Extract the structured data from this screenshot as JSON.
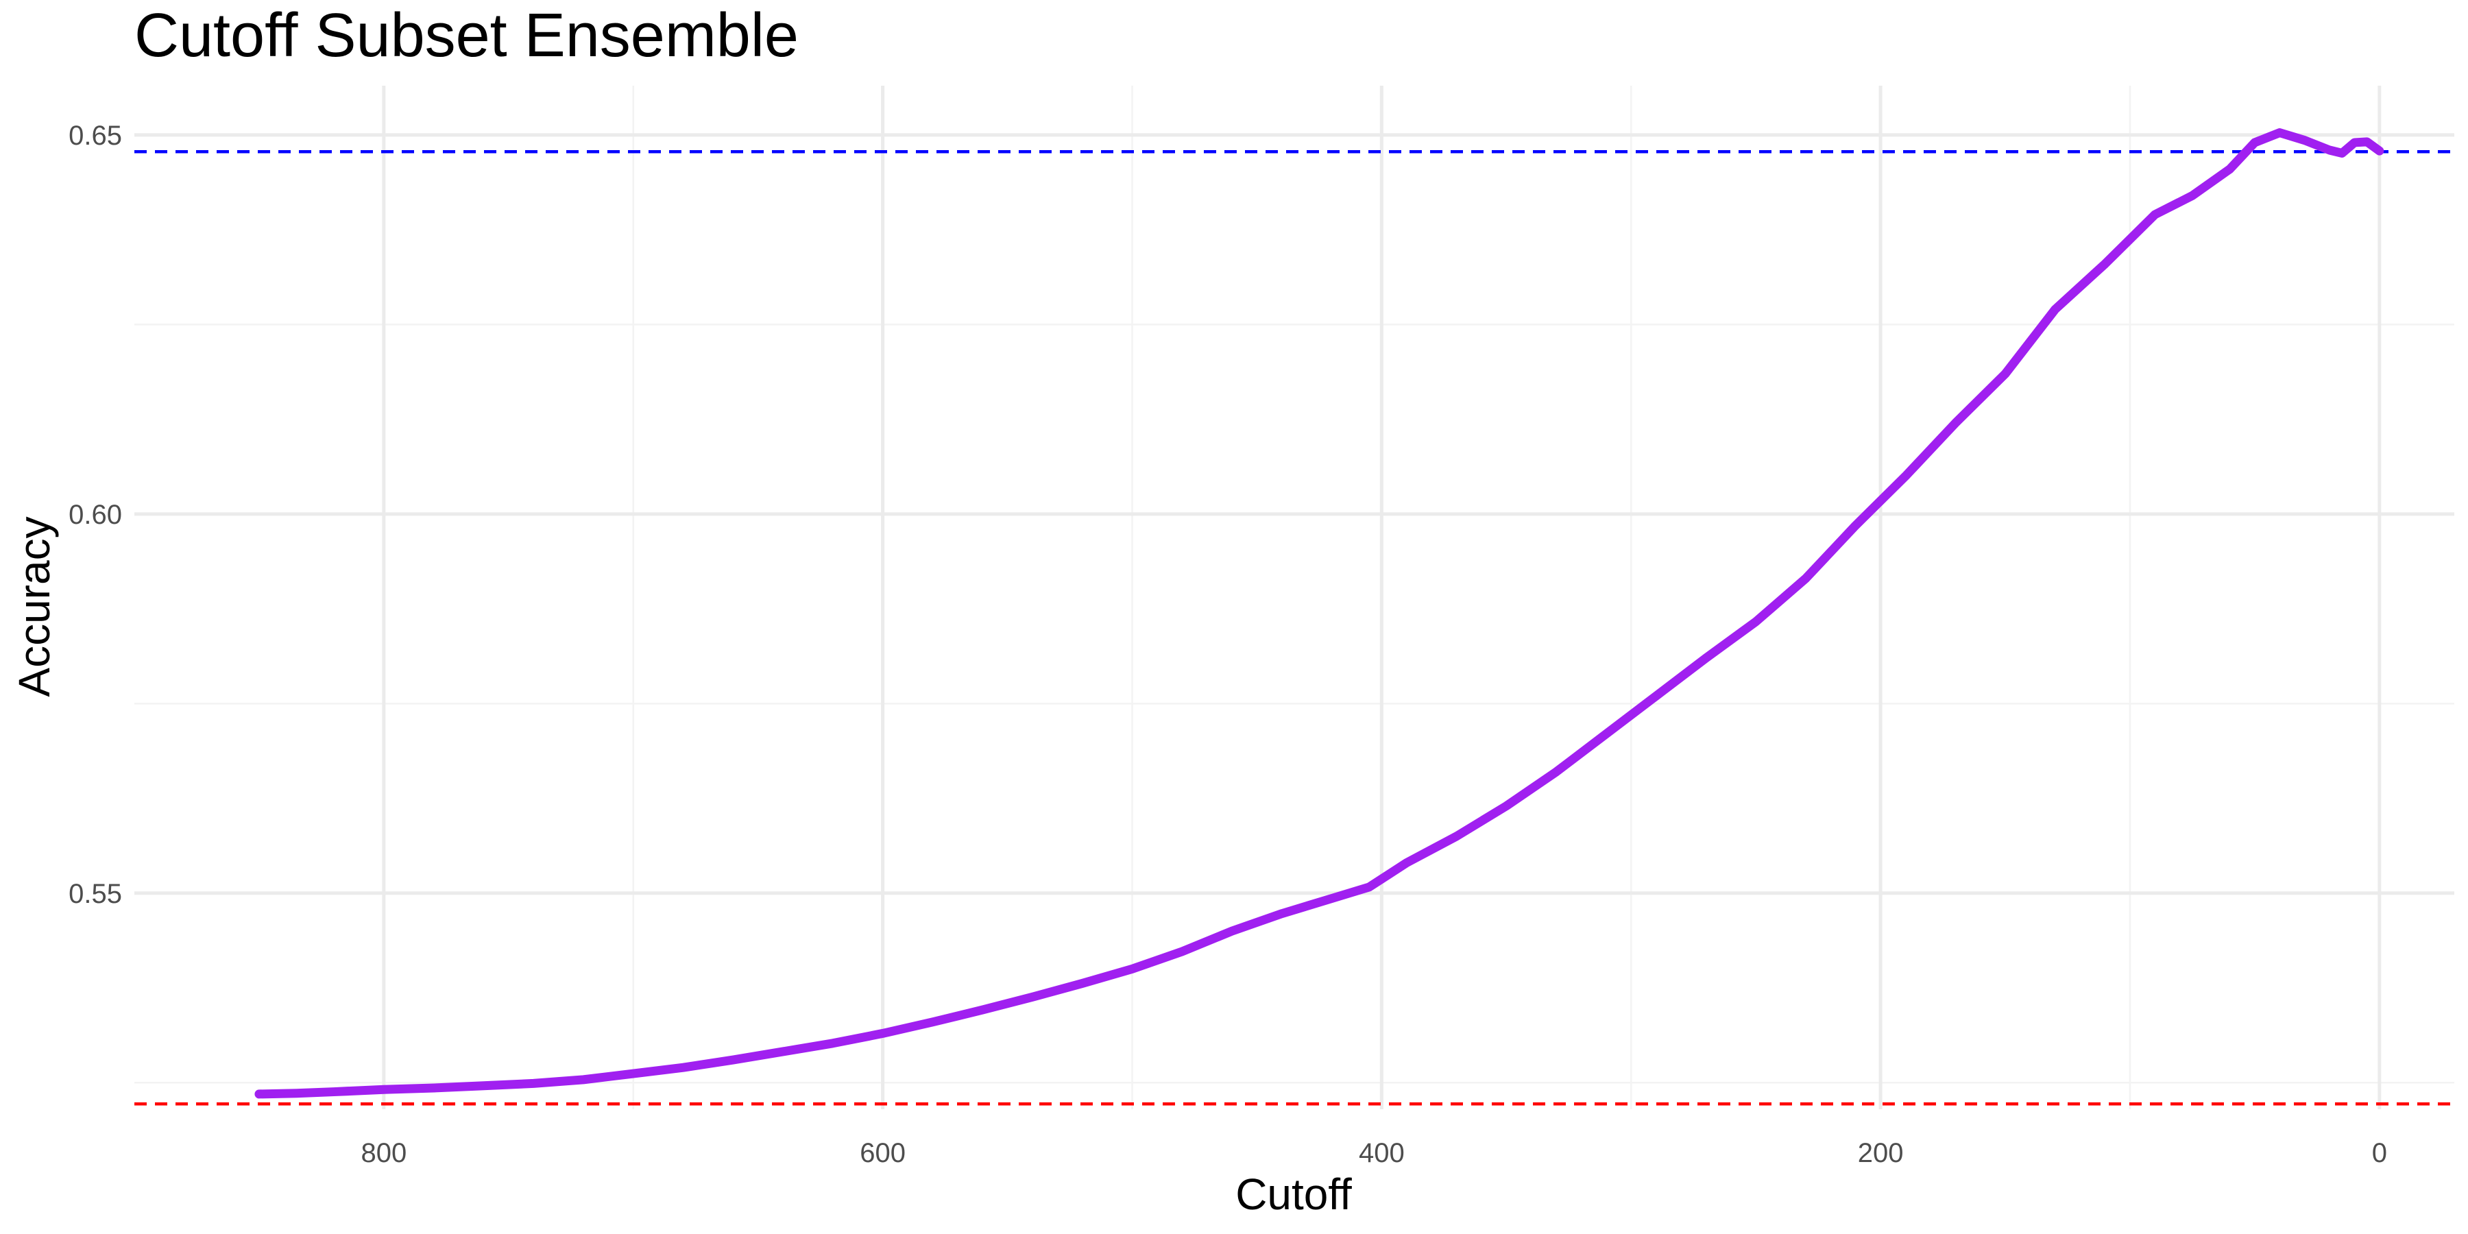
{
  "chart_data": {
    "type": "line",
    "title": "Cutoff Subset Ensemble",
    "xlabel": "Cutoff",
    "ylabel": "Accuracy",
    "x_reversed": true,
    "xlim": [
      900,
      -30
    ],
    "ylim": [
      0.5215,
      0.6565
    ],
    "x_ticks": [
      800,
      600,
      400,
      200,
      0
    ],
    "x_tick_labels": [
      "800",
      "600",
      "400",
      "200",
      "0"
    ],
    "y_ticks": [
      0.55,
      0.6,
      0.65
    ],
    "y_tick_labels": [
      "0.55",
      "0.60",
      "0.65"
    ],
    "x_minor_ticks": [
      700,
      500,
      300,
      100
    ],
    "y_minor_ticks": [
      0.525,
      0.575,
      0.625
    ],
    "grid": true,
    "legend": "none",
    "series": [
      {
        "color": "#a020f0",
        "points": [
          [
            850,
            0.5235
          ],
          [
            835,
            0.5236
          ],
          [
            820,
            0.5238
          ],
          [
            800,
            0.5241
          ],
          [
            780,
            0.5243
          ],
          [
            760,
            0.5246
          ],
          [
            740,
            0.5249
          ],
          [
            720,
            0.5254
          ],
          [
            700,
            0.5262
          ],
          [
            680,
            0.527
          ],
          [
            660,
            0.528
          ],
          [
            640,
            0.5291
          ],
          [
            620,
            0.5302
          ],
          [
            600,
            0.5315
          ],
          [
            580,
            0.533
          ],
          [
            560,
            0.5346
          ],
          [
            540,
            0.5363
          ],
          [
            520,
            0.5381
          ],
          [
            500,
            0.54
          ],
          [
            480,
            0.5423
          ],
          [
            460,
            0.545
          ],
          [
            440,
            0.5473
          ],
          [
            420,
            0.5493
          ],
          [
            405,
            0.5508
          ],
          [
            390,
            0.554
          ],
          [
            370,
            0.5575
          ],
          [
            350,
            0.5615
          ],
          [
            330,
            0.566
          ],
          [
            310,
            0.571
          ],
          [
            290,
            0.576
          ],
          [
            270,
            0.581
          ],
          [
            250,
            0.5858
          ],
          [
            230,
            0.5915
          ],
          [
            210,
            0.5985
          ],
          [
            190,
            0.605
          ],
          [
            170,
            0.612
          ],
          [
            150,
            0.6185
          ],
          [
            130,
            0.627
          ],
          [
            110,
            0.633
          ],
          [
            90,
            0.6395
          ],
          [
            75,
            0.642
          ],
          [
            60,
            0.6455
          ],
          [
            50,
            0.649
          ],
          [
            40,
            0.6503
          ],
          [
            30,
            0.6493
          ],
          [
            20,
            0.648
          ],
          [
            15,
            0.6476
          ],
          [
            10,
            0.649
          ],
          [
            5,
            0.6491
          ],
          [
            0,
            0.6479
          ]
        ]
      }
    ],
    "reference_lines": [
      {
        "axis": "y",
        "value": 0.6478,
        "color": "#0000ff",
        "style": "dashed"
      },
      {
        "axis": "y",
        "value": 0.5222,
        "color": "#ff0000",
        "style": "dashed"
      }
    ]
  }
}
